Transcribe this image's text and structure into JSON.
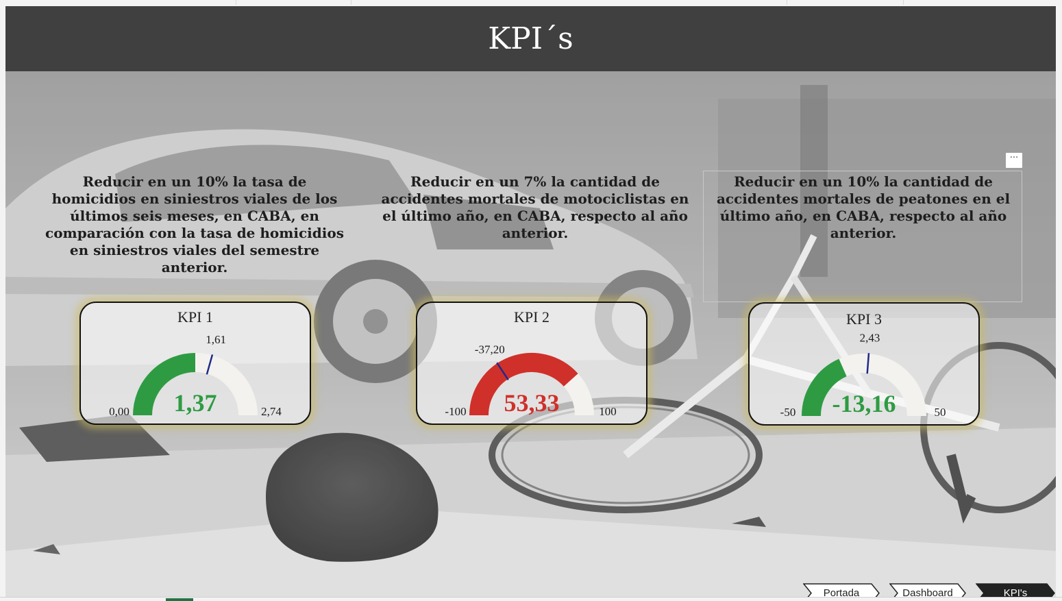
{
  "header": {
    "title": "KPI´s"
  },
  "objectives": [
    "Reducir en un 10% la tasa de homicidios en siniestros viales de los últimos seis meses, en CABA, en comparación con la tasa de homicidios en siniestros viales del semestre anterior.",
    "Reducir en un 7% la cantidad de accidentes mortales de motociclistas en el último año, en CABA, respecto al año anterior.",
    "Reducir en un 10% la cantidad de accidentes mortales de peatones en el último año, en CABA, respecto al año anterior."
  ],
  "kpis": [
    {
      "title": "KPI 1",
      "min": 0.0,
      "max": 2.74,
      "value": 1.37,
      "target": 1.61,
      "min_label": "0,00",
      "max_label": "2,74",
      "value_label": "1,37",
      "target_label": "1,61",
      "color": "#2e9b43"
    },
    {
      "title": "KPI 2",
      "min": -100,
      "max": 100,
      "value": 53.33,
      "target": -37.2,
      "min_label": "-100",
      "max_label": "100",
      "value_label": "53,33",
      "target_label": "-37,20",
      "color": "#d0302a"
    },
    {
      "title": "KPI 3",
      "min": -50,
      "max": 50,
      "value": -13.16,
      "target": 2.43,
      "min_label": "-50",
      "max_label": "50",
      "value_label": "-13,16",
      "target_label": "2,43",
      "color": "#2e9b43"
    }
  ],
  "colors": {
    "track": "#f4f2ee",
    "target_needle": "#1f2a8a",
    "header_bg": "#404040",
    "active_nav": "#222222"
  },
  "nav": {
    "portada": "Portada",
    "dashboard": "Dashboard",
    "kpis": "KPI's"
  },
  "more_options": "···"
}
